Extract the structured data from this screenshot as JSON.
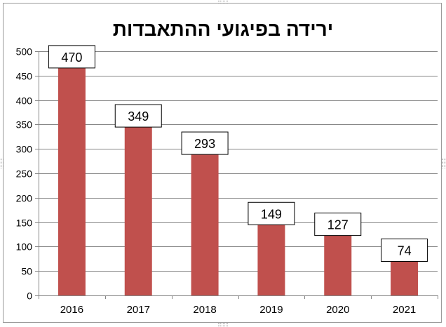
{
  "chart_data": {
    "type": "bar",
    "title": "ירידה בפיגועי ההתאבדות",
    "categories": [
      "2016",
      "2017",
      "2018",
      "2019",
      "2020",
      "2021"
    ],
    "values": [
      470,
      349,
      293,
      149,
      127,
      74
    ],
    "yticks": [
      "0",
      "50",
      "100",
      "150",
      "200",
      "250",
      "300",
      "350",
      "400",
      "450",
      "500"
    ],
    "ylim": [
      0,
      500
    ],
    "xlabel": "",
    "ylabel": "",
    "grid": true,
    "bar_color": "#c0504d",
    "grid_color": "#868686"
  }
}
